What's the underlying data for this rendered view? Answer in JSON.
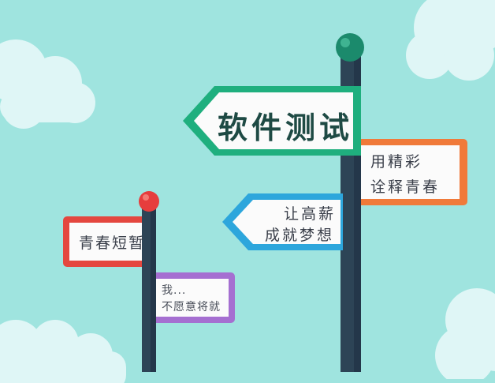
{
  "colors": {
    "sky": "#9fe4df",
    "cloud": "#dff6f6",
    "sign_green": "#1faf7e",
    "sign_orange": "#f07a3a",
    "sign_blue": "#2da6dc",
    "sign_red": "#e4473f",
    "sign_purple": "#a56fd1",
    "pole": "#2d4456",
    "knob_green": "#1b8a6c",
    "knob_red": "#e63d3d"
  },
  "signs": {
    "main": "软件测试",
    "orange_line1": "用精彩",
    "orange_line2": "诠释青春",
    "blue_line1": "让高薪",
    "blue_line2": "成就梦想",
    "red": "青春短暂",
    "purple_line1": "我...",
    "purple_line2": "不愿意将就"
  }
}
